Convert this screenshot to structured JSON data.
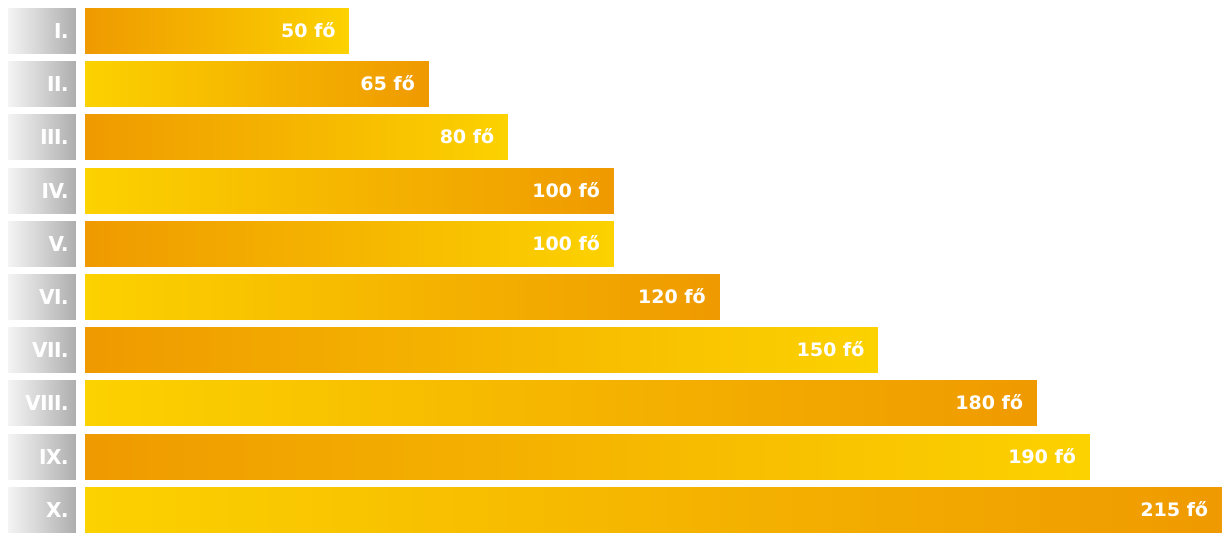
{
  "chart_data": {
    "type": "bar",
    "orientation": "horizontal",
    "categories": [
      "I.",
      "II.",
      "III.",
      "IV.",
      "V.",
      "VI.",
      "VII.",
      "VIII.",
      "IX.",
      "X."
    ],
    "values": [
      50,
      65,
      80,
      100,
      100,
      120,
      150,
      180,
      190,
      215
    ],
    "value_labels": [
      "50 fő",
      "65 fő",
      "80 fő",
      "100 fő",
      "100 fő",
      "120 fő",
      "150 fő",
      "180 fő",
      "190 fő",
      "215 fő"
    ],
    "title": "",
    "xlabel": "",
    "ylabel": "",
    "xlim": [
      0,
      215
    ],
    "grid": false,
    "colors": {
      "bar_orange": "#ef9a00",
      "bar_yellow": "#fcd200",
      "label_gray": "#aeaeae",
      "text": "#ffffff"
    }
  }
}
